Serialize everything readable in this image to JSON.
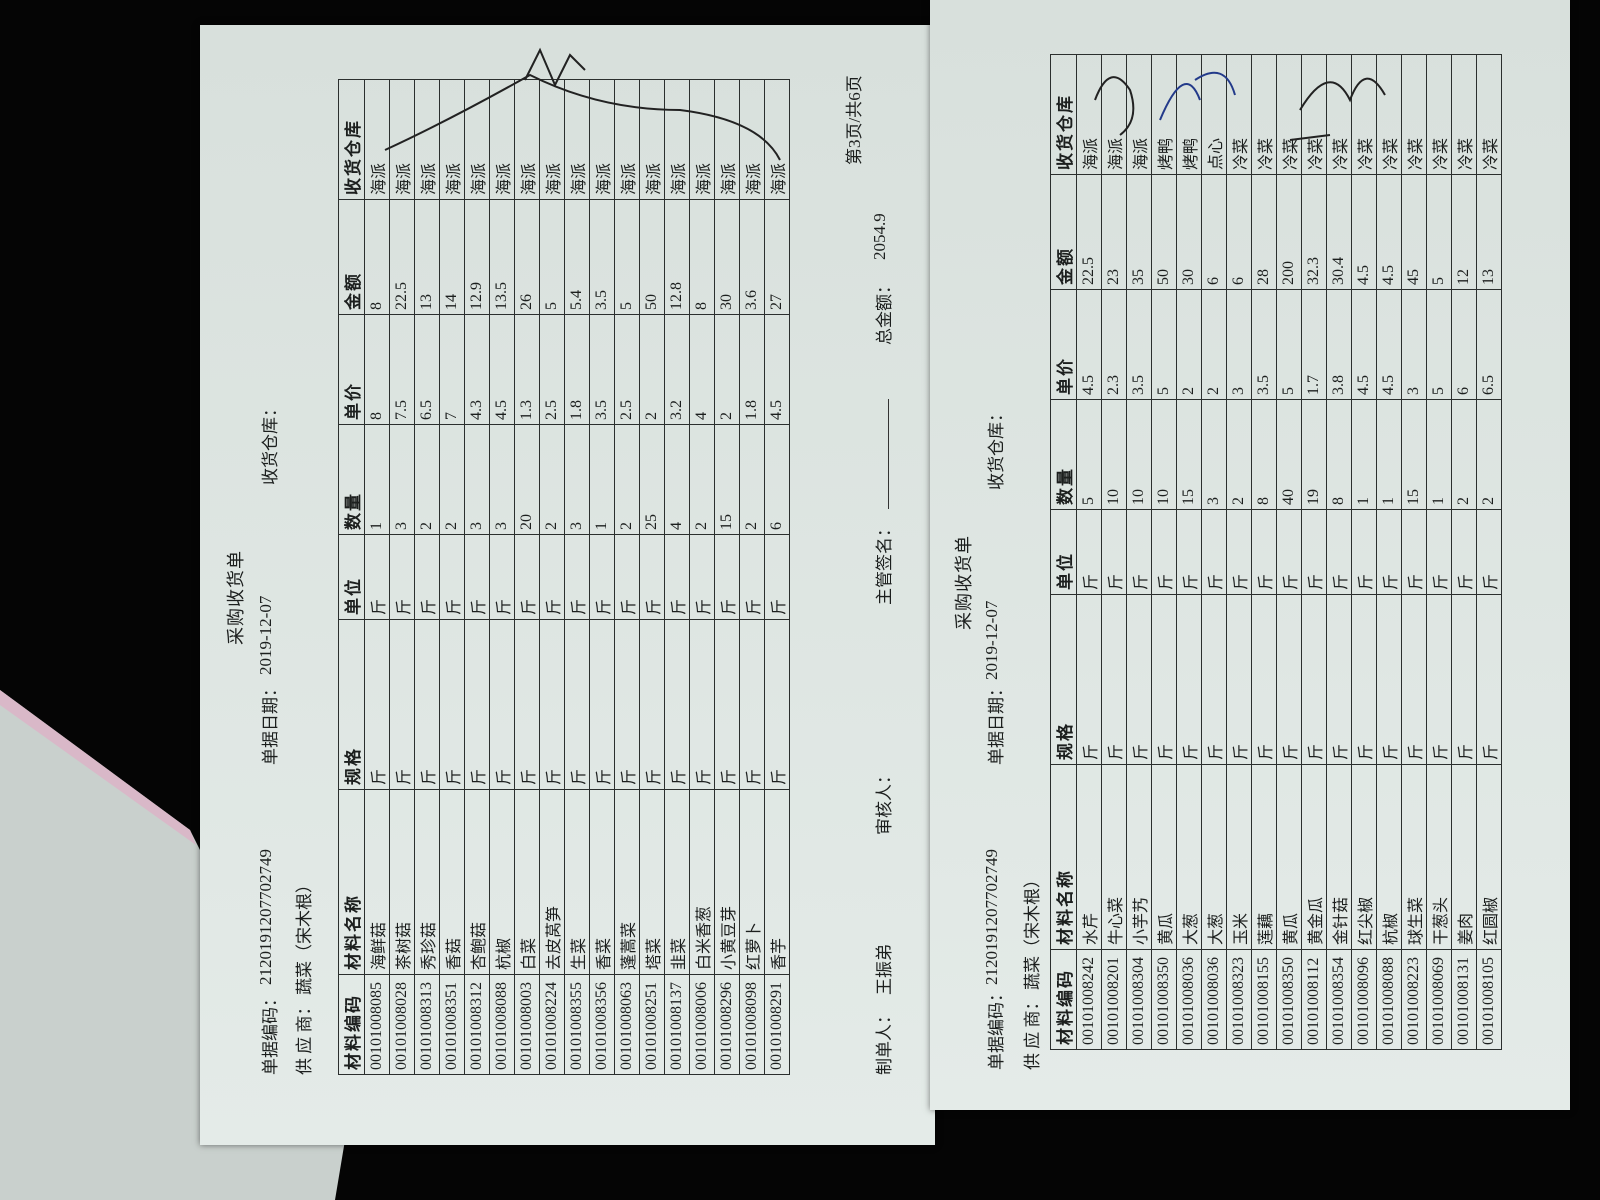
{
  "left_sheet": {
    "title": "采购收货单",
    "document_number": {
      "label": "单据编码：",
      "value": "2120191207702749"
    },
    "document_date": {
      "label": "单据日期：",
      "value": "2019-12-07"
    },
    "warehouse": {
      "label": "收货仓库："
    },
    "supplier": {
      "label": "供 应 商：",
      "value": "蔬菜（宋木根）"
    },
    "table": {
      "headers": [
        "材料编码",
        "材料名称",
        "规格",
        "单位",
        "数量",
        "单价",
        "金额",
        "收货仓库"
      ],
      "rows": [
        [
          "00101008085",
          "海鲜菇",
          "斤",
          "斤",
          "1",
          "8",
          "8",
          "海派"
        ],
        [
          "00101008028",
          "茶树菇",
          "斤",
          "斤",
          "3",
          "7.5",
          "22.5",
          "海派"
        ],
        [
          "00101008313",
          "秀珍菇",
          "斤",
          "斤",
          "2",
          "6.5",
          "13",
          "海派"
        ],
        [
          "00101008351",
          "香菇",
          "斤",
          "斤",
          "2",
          "7",
          "14",
          "海派"
        ],
        [
          "00101008312",
          "杏鲍菇",
          "斤",
          "斤",
          "3",
          "4.3",
          "12.9",
          "海派"
        ],
        [
          "00101008088",
          "杭椒",
          "斤",
          "斤",
          "3",
          "4.5",
          "13.5",
          "海派"
        ],
        [
          "00101008003",
          "白菜",
          "斤",
          "斤",
          "20",
          "1.3",
          "26",
          "海派"
        ],
        [
          "00101008224",
          "去皮莴笋",
          "斤",
          "斤",
          "2",
          "2.5",
          "5",
          "海派"
        ],
        [
          "00101008355",
          "生菜",
          "斤",
          "斤",
          "3",
          "1.8",
          "5.4",
          "海派"
        ],
        [
          "00101008356",
          "香菜",
          "斤",
          "斤",
          "1",
          "3.5",
          "3.5",
          "海派"
        ],
        [
          "00101008063",
          "蓬蒿菜",
          "斤",
          "斤",
          "2",
          "2.5",
          "5",
          "海派"
        ],
        [
          "00101008251",
          "塔菜",
          "斤",
          "斤",
          "25",
          "2",
          "50",
          "海派"
        ],
        [
          "00101008137",
          "韭菜",
          "斤",
          "斤",
          "4",
          "3.2",
          "12.8",
          "海派"
        ],
        [
          "00101008006",
          "白米香葱",
          "斤",
          "斤",
          "2",
          "4",
          "8",
          "海派"
        ],
        [
          "00101008296",
          "小黄豆芽",
          "斤",
          "斤",
          "15",
          "2",
          "30",
          "海派"
        ],
        [
          "00101008098",
          "红萝卜",
          "斤",
          "斤",
          "2",
          "1.8",
          "3.6",
          "海派"
        ],
        [
          "00101008291",
          "香芋",
          "斤",
          "斤",
          "6",
          "4.5",
          "27",
          "海派"
        ]
      ]
    },
    "prepared_by": {
      "label": "制单人：",
      "value": "王振弟"
    },
    "reviewer": {
      "label": "审核人："
    },
    "supervisor": {
      "label": "主管签名："
    },
    "total": {
      "label": "总金额：",
      "value": "2054.9"
    },
    "page": "第3页/共6页"
  },
  "right_sheet": {
    "title": "采购收货单",
    "document_number": {
      "label": "单据编码：",
      "value": "2120191207702749"
    },
    "document_date": {
      "label": "单据日期：",
      "value": "2019-12-07"
    },
    "warehouse": {
      "label": "收货仓库："
    },
    "supplier": {
      "label": "供 应 商：",
      "value": "蔬菜（宋木根）"
    },
    "table": {
      "headers": [
        "材料编码",
        "材料名称",
        "规格",
        "单位",
        "数量",
        "单价",
        "金额",
        "收货仓库"
      ],
      "rows": [
        [
          "00101008242",
          "水芹",
          "斤",
          "斤",
          "5",
          "4.5",
          "22.5",
          "海派"
        ],
        [
          "00101008201",
          "牛心菜",
          "斤",
          "斤",
          "10",
          "2.3",
          "23",
          "海派"
        ],
        [
          "00101008304",
          "小芋艿",
          "斤",
          "斤",
          "10",
          "3.5",
          "35",
          "海派"
        ],
        [
          "00101008350",
          "黄瓜",
          "斤",
          "斤",
          "10",
          "5",
          "50",
          "烤鸭"
        ],
        [
          "00101008036",
          "大葱",
          "斤",
          "斤",
          "15",
          "2",
          "30",
          "烤鸭"
        ],
        [
          "00101008036",
          "大葱",
          "斤",
          "斤",
          "3",
          "2",
          "6",
          "点心"
        ],
        [
          "00101008323",
          "玉米",
          "斤",
          "斤",
          "2",
          "3",
          "6",
          "冷菜"
        ],
        [
          "00101008155",
          "莲藕",
          "斤",
          "斤",
          "8",
          "3.5",
          "28",
          "冷菜"
        ],
        [
          "00101008350",
          "黄瓜",
          "斤",
          "斤",
          "40",
          "5",
          "200",
          "冷菜"
        ],
        [
          "00101008112",
          "黄金瓜",
          "斤",
          "斤",
          "19",
          "1.7",
          "32.3",
          "冷菜"
        ],
        [
          "00101008354",
          "金针菇",
          "斤",
          "斤",
          "8",
          "3.8",
          "30.4",
          "冷菜"
        ],
        [
          "00101008096",
          "红尖椒",
          "斤",
          "斤",
          "1",
          "4.5",
          "4.5",
          "冷菜"
        ],
        [
          "00101008088",
          "杭椒",
          "斤",
          "斤",
          "1",
          "4.5",
          "4.5",
          "冷菜"
        ],
        [
          "00101008223",
          "球生菜",
          "斤",
          "斤",
          "15",
          "3",
          "45",
          "冷菜"
        ],
        [
          "00101008069",
          "干葱头",
          "斤",
          "斤",
          "1",
          "5",
          "5",
          "冷菜"
        ],
        [
          "00101008131",
          "姜肉",
          "斤",
          "斤",
          "2",
          "6",
          "12",
          "冷菜"
        ],
        [
          "00101008105",
          "红圆椒",
          "斤",
          "斤",
          "2",
          "6.5",
          "13",
          "冷菜"
        ]
      ]
    }
  }
}
